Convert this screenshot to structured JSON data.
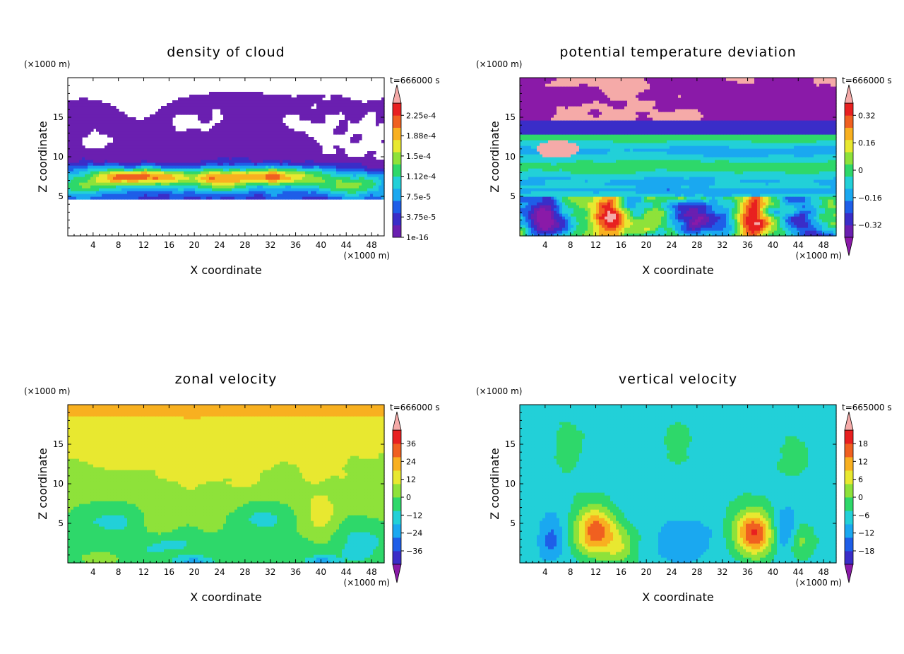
{
  "chart_data": [
    {
      "type": "heatmap",
      "title": "density of cloud",
      "xlabel": "X coordinate",
      "ylabel": "Z coordinate",
      "x_unit": "(×1000 m)",
      "y_unit": "(×1000 m)",
      "time_label": "t=666000 s",
      "xlim": [
        0,
        50
      ],
      "ylim": [
        0,
        20
      ],
      "x_ticks": [
        4,
        8,
        12,
        16,
        20,
        24,
        28,
        32,
        36,
        40,
        44,
        48
      ],
      "y_ticks": [
        5,
        10,
        15
      ],
      "colorbar": {
        "labels": [
          "1e-16",
          "3.75e-5",
          "7.5e-5",
          "1.12e-4",
          "1.5e-4",
          "1.88e-4",
          "2.25e-4"
        ],
        "colors": [
          "#6a1fb0",
          "#3a2dc8",
          "#1e5ee8",
          "#1aa8f0",
          "#22d0d8",
          "#2ed86a",
          "#8ee23a",
          "#e8e830",
          "#f8b020",
          "#f06020",
          "#e82020"
        ],
        "overflow_color": "#f5aaa8",
        "arrow_top": true,
        "arrow_bottom": false
      },
      "field": "cloud",
      "colors": {
        "background": "#ffffff"
      }
    },
    {
      "type": "heatmap",
      "title": "potential temperature deviation",
      "xlabel": "X coordinate",
      "ylabel": "Z coordinate",
      "x_unit": "(×1000 m)",
      "y_unit": "(×1000 m)",
      "time_label": "t=666000 s",
      "xlim": [
        0,
        50
      ],
      "ylim": [
        0,
        20
      ],
      "x_ticks": [
        4,
        8,
        12,
        16,
        20,
        24,
        28,
        32,
        36,
        40,
        44,
        48
      ],
      "y_ticks": [
        5,
        10,
        15
      ],
      "colorbar": {
        "labels": [
          "−0.32",
          "−0.16",
          "0",
          "0.16",
          "0.32"
        ],
        "colors": [
          "#6a1fb0",
          "#3a2dc8",
          "#1e5ee8",
          "#1aa8f0",
          "#22d0d8",
          "#2ed86a",
          "#8ee23a",
          "#e8e830",
          "#f8b020",
          "#f06020",
          "#e82020"
        ],
        "overflow_color": "#f5aaa8",
        "underflow_color": "#8a1aa8",
        "arrow_top": true,
        "arrow_bottom": true
      },
      "field": "theta"
    },
    {
      "type": "heatmap",
      "title": "zonal velocity",
      "xlabel": "X coordinate",
      "ylabel": "Z coordinate",
      "x_unit": "(×1000 m)",
      "y_unit": "(×1000 m)",
      "time_label": "t=666000 s",
      "xlim": [
        0,
        50
      ],
      "ylim": [
        0,
        20
      ],
      "x_ticks": [
        4,
        8,
        12,
        16,
        20,
        24,
        28,
        32,
        36,
        40,
        44,
        48
      ],
      "y_ticks": [
        5,
        10,
        15
      ],
      "colorbar": {
        "labels": [
          "−36",
          "−24",
          "−12",
          "0",
          "12",
          "24",
          "36"
        ],
        "colors": [
          "#3a2dc8",
          "#1e5ee8",
          "#1aa8f0",
          "#22d0d8",
          "#2ed86a",
          "#8ee23a",
          "#e8e830",
          "#f8b020",
          "#f06020",
          "#e82020"
        ],
        "overflow_color": "#f5aaa8",
        "underflow_color": "#8a1aa8",
        "arrow_top": true,
        "arrow_bottom": true
      },
      "field": "u"
    },
    {
      "type": "heatmap",
      "title": "vertical velocity",
      "xlabel": "X coordinate",
      "ylabel": "Z coordinate",
      "x_unit": "(×1000 m)",
      "y_unit": "(×1000 m)",
      "time_label": "t=665000 s",
      "xlim": [
        0,
        50
      ],
      "ylim": [
        0,
        20
      ],
      "x_ticks": [
        4,
        8,
        12,
        16,
        20,
        24,
        28,
        32,
        36,
        40,
        44,
        48
      ],
      "y_ticks": [
        5,
        10,
        15
      ],
      "colorbar": {
        "labels": [
          "−18",
          "−12",
          "−6",
          "0",
          "6",
          "12",
          "18"
        ],
        "colors": [
          "#3a2dc8",
          "#1e5ee8",
          "#1aa8f0",
          "#22d0d8",
          "#2ed86a",
          "#8ee23a",
          "#e8e830",
          "#f8b020",
          "#f06020",
          "#e82020"
        ],
        "overflow_color": "#f5aaa8",
        "underflow_color": "#8a1aa8",
        "arrow_top": true,
        "arrow_bottom": true
      },
      "field": "w"
    }
  ]
}
